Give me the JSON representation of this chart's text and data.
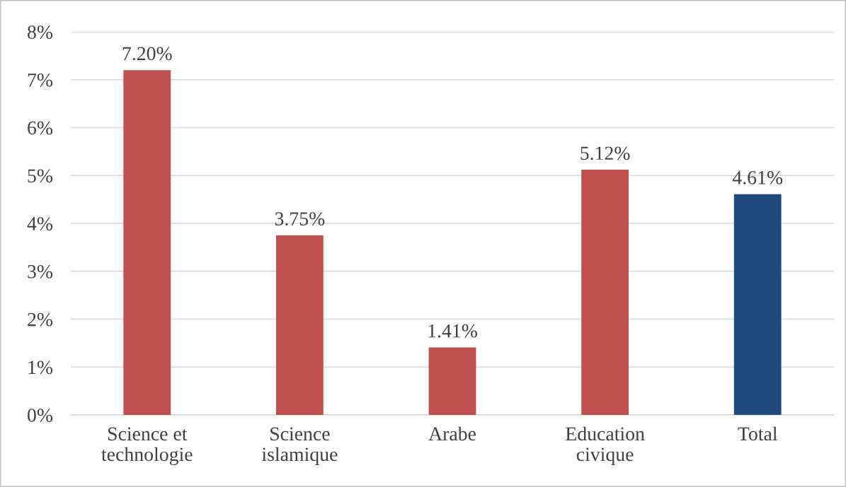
{
  "chart_data": {
    "type": "bar",
    "categories": [
      "Science et\ntechnologie",
      "Science\nislamique",
      "Arabe",
      "Education\ncivique",
      "Total"
    ],
    "values": [
      7.2,
      3.75,
      1.41,
      5.12,
      4.61
    ],
    "colors": [
      "#c0504d",
      "#c0504d",
      "#c0504d",
      "#c0504d",
      "#1f497d"
    ],
    "value_labels": [
      "7.20%",
      "3.75%",
      "1.41%",
      "5.12%",
      "4.61%"
    ],
    "ylim": [
      0,
      8
    ],
    "yticks": [
      {
        "value": 0,
        "label": "0%"
      },
      {
        "value": 1,
        "label": "1%"
      },
      {
        "value": 2,
        "label": "2%"
      },
      {
        "value": 3,
        "label": "3%"
      },
      {
        "value": 4,
        "label": "4%"
      },
      {
        "value": 5,
        "label": "5%"
      },
      {
        "value": 6,
        "label": "6%"
      },
      {
        "value": 7,
        "label": "7%"
      },
      {
        "value": 8,
        "label": "8%"
      }
    ],
    "grid": "y"
  }
}
